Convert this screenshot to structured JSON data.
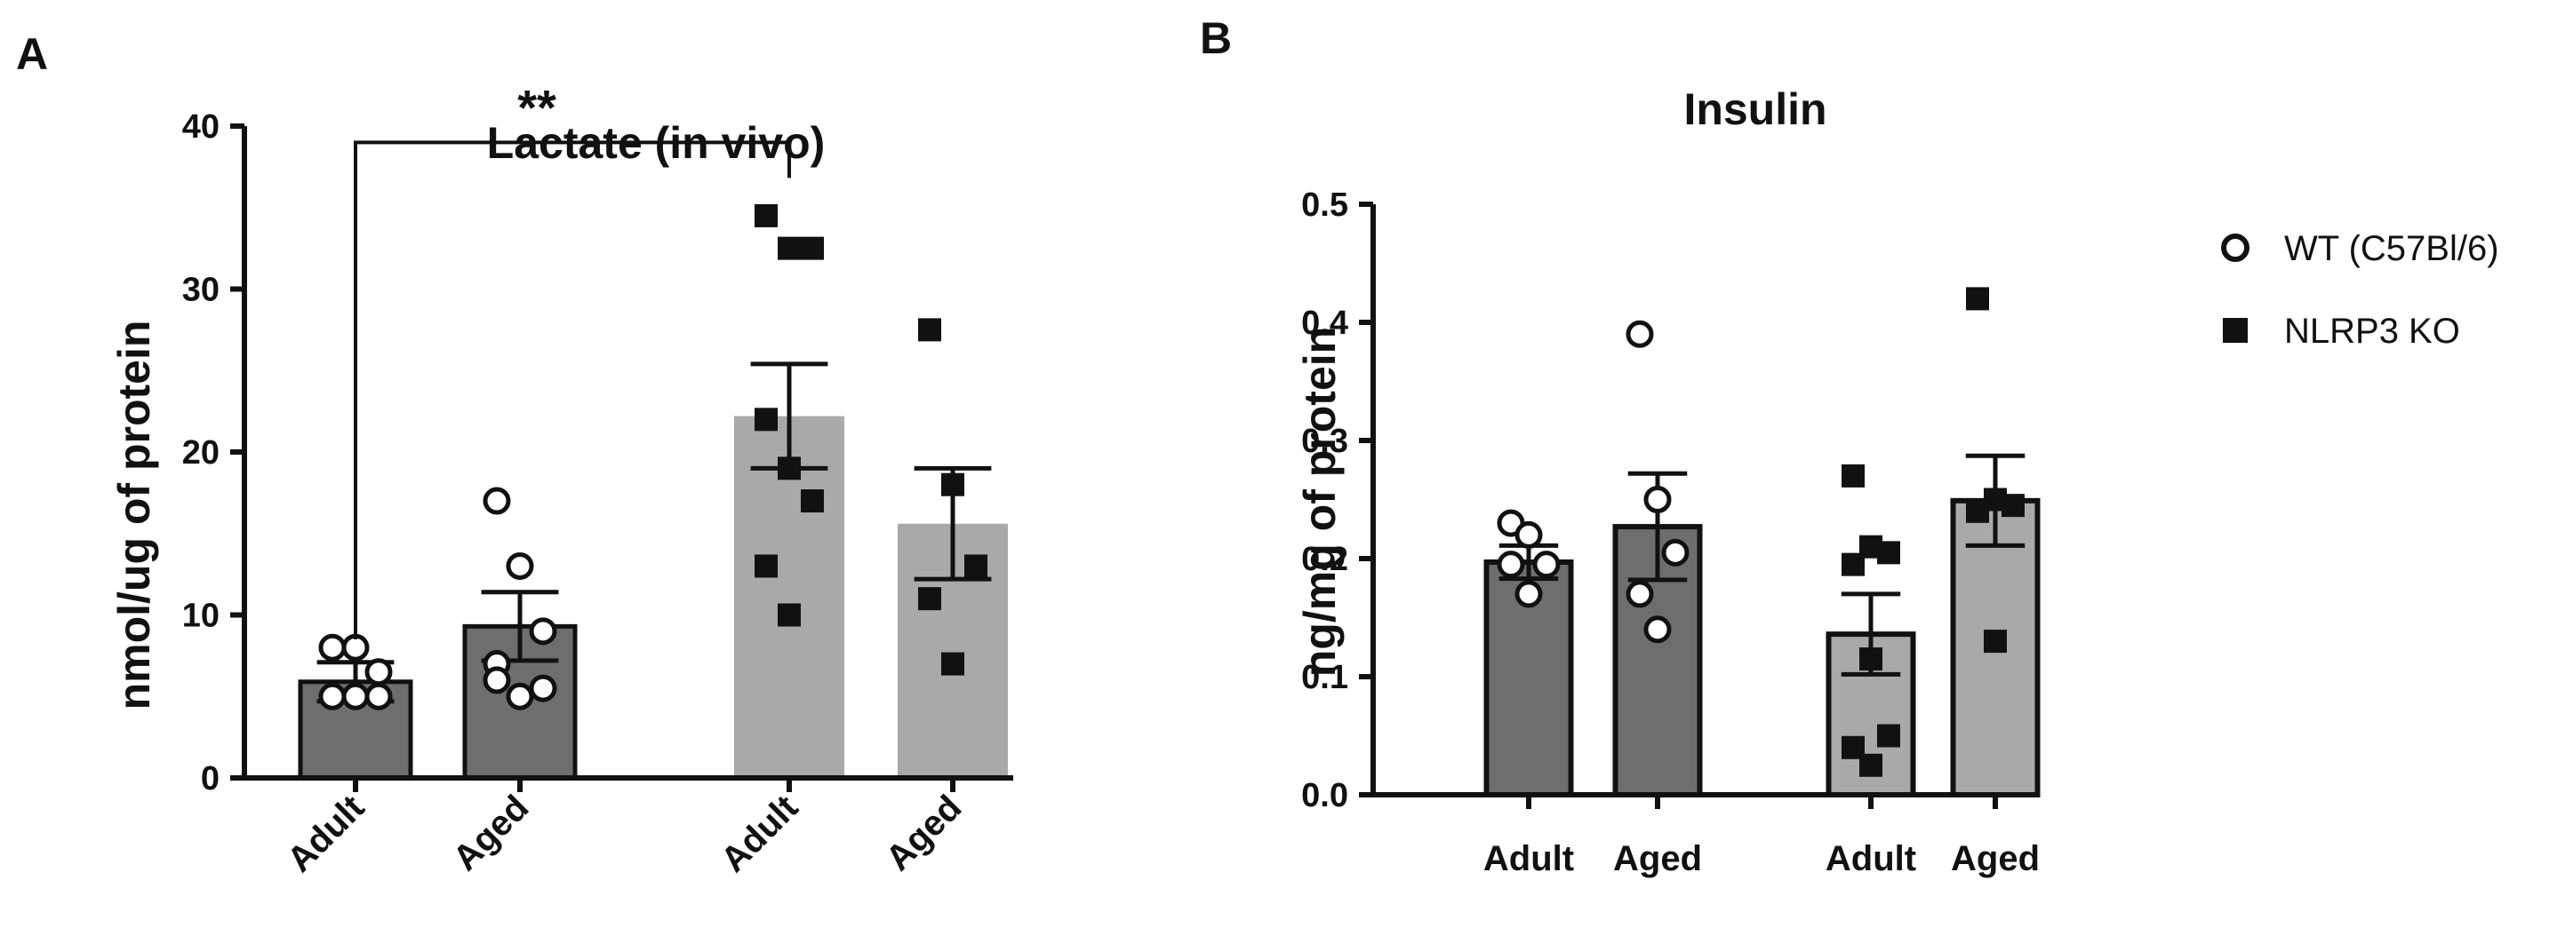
{
  "chart_data": [
    {
      "panel": "A",
      "type": "bar",
      "title": "Lactate (in vivo)",
      "ylabel": "nmol/ug of protein",
      "xlabel": "",
      "ylim": [
        0,
        40
      ],
      "yticks": [
        0,
        10,
        20,
        30,
        40
      ],
      "categories": [
        "Adult",
        "Aged",
        "Adult",
        "Aged"
      ],
      "groups": [
        "WT (C57Bl/6)",
        "WT (C57Bl/6)",
        "NLRP3 KO",
        "NLRP3 KO"
      ],
      "means": [
        5.9,
        9.3,
        22.2,
        15.6
      ],
      "sem": [
        1.2,
        2.1,
        3.2,
        3.4
      ],
      "points": [
        [
          8.0,
          8.0,
          5.0,
          5.0,
          5.0,
          6.5
        ],
        [
          17.0,
          13.0,
          9.0,
          7.0,
          5.0,
          5.5,
          6.0
        ],
        [
          34.5,
          32.5,
          32.5,
          22.0,
          19.0,
          17.0,
          13.0,
          10.0
        ],
        [
          27.5,
          18.0,
          13.0,
          11.0,
          7.0
        ]
      ],
      "significance": {
        "label": "**",
        "from": 0,
        "to": 2,
        "y": 39
      }
    },
    {
      "panel": "B",
      "type": "bar",
      "title": "Insulin",
      "ylabel": "ng/mg of protein",
      "xlabel": "",
      "ylim": [
        0,
        0.5
      ],
      "yticks": [
        "0.0",
        "0.1",
        "0.2",
        "0.3",
        "0.4",
        "0.5"
      ],
      "categories": [
        "Adult",
        "Aged",
        "Adult",
        "Aged"
      ],
      "groups": [
        "WT (C57Bl/6)",
        "WT (C57Bl/6)",
        "NLRP3 KO",
        "NLRP3 KO"
      ],
      "means": [
        0.197,
        0.227,
        0.136,
        0.249
      ],
      "sem": [
        0.014,
        0.045,
        0.034,
        0.038
      ],
      "points": [
        [
          0.23,
          0.22,
          0.195,
          0.195,
          0.17
        ],
        [
          0.39,
          0.25,
          0.205,
          0.17,
          0.14
        ],
        [
          0.27,
          0.21,
          0.205,
          0.195,
          0.115,
          0.05,
          0.04,
          0.025
        ],
        [
          0.42,
          0.25,
          0.245,
          0.24,
          0.13
        ]
      ]
    }
  ],
  "legend": [
    {
      "label": "WT (C57Bl/6)",
      "marker": "open-circle"
    },
    {
      "label": "NLRP3 KO",
      "marker": "filled-square"
    }
  ],
  "colors": {
    "wt_bar": "#6e6e6e",
    "ko_bar": "#a9a9a9",
    "ink": "#111111"
  }
}
